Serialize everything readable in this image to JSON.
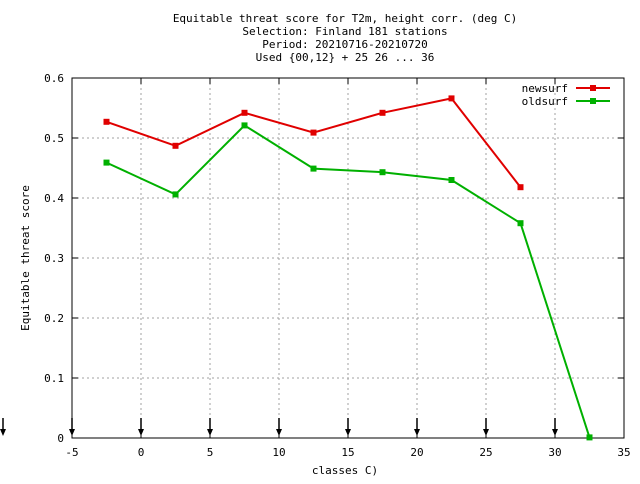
{
  "chart_data": {
    "type": "line",
    "title_lines": [
      "Equitable threat score  for T2m, height corr. (deg C)",
      "Selection: Finland    181 stations",
      "Period: 20210716-20210720",
      "Used {00,12} + 25 26 ... 36"
    ],
    "xlabel": "classes C)",
    "ylabel": "Equitable threat score",
    "xlim": [
      -5,
      35
    ],
    "ylim": [
      0,
      0.6
    ],
    "xticks": [
      -5,
      0,
      5,
      10,
      15,
      20,
      25,
      30,
      35
    ],
    "xtick_labels": [
      "-5",
      "0",
      "5",
      "10",
      "15",
      "20",
      "25",
      "30",
      "35"
    ],
    "yticks": [
      0,
      0.1,
      0.2,
      0.3,
      0.4,
      0.5,
      0.6
    ],
    "ytick_labels": [
      "0",
      "0.1",
      "0.2",
      "0.3",
      "0.4",
      "0.5",
      "0.6"
    ],
    "grid": true,
    "legend_position": "top-right",
    "arrow_markers_x": [
      -10,
      -5,
      0,
      5,
      10,
      15,
      20,
      25,
      30
    ],
    "series": [
      {
        "name": "newsurf",
        "color": "#e00000",
        "x": [
          -2.5,
          2.5,
          7.5,
          12.5,
          17.5,
          22.5,
          27.5
        ],
        "y": [
          0.527,
          0.487,
          0.542,
          0.509,
          0.542,
          0.566,
          0.418
        ]
      },
      {
        "name": "oldsurf",
        "color": "#00b000",
        "x": [
          -2.5,
          2.5,
          7.5,
          12.5,
          17.5,
          22.5,
          27.5,
          32.5
        ],
        "y": [
          0.459,
          0.406,
          0.521,
          0.449,
          0.443,
          0.43,
          0.358,
          0.001
        ]
      }
    ]
  }
}
